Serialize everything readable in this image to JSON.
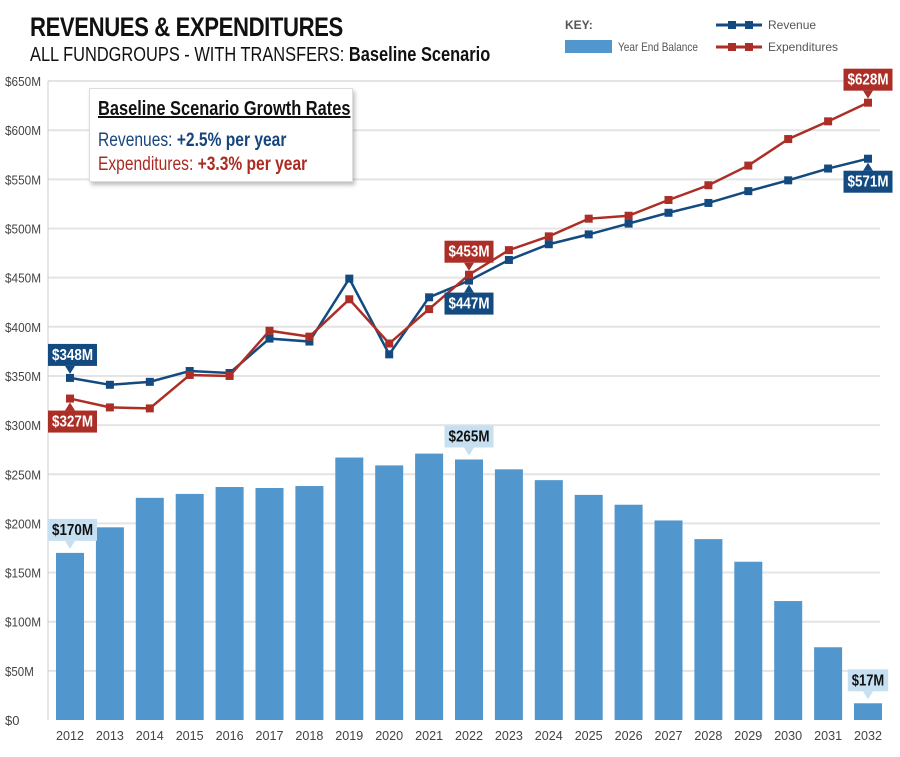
{
  "header": {
    "title": "REVENUES & EXPENDITURES",
    "subtitle_prefix": "ALL FUNDGROUPS - WITH TRANSFERS: ",
    "subtitle_bold": "Baseline Scenario"
  },
  "growth_box": {
    "heading": "Baseline Scenario Growth Rates",
    "revenues_label": "Revenues: ",
    "revenues_value": "+2.5% per year",
    "expenditures_label": "Expenditures: ",
    "expenditures_value": "+3.3% per year"
  },
  "chart_data": {
    "type": "bar+line",
    "title": "REVENUES & EXPENDITURES",
    "xlabel": "",
    "ylabel": "",
    "ylim": [
      0,
      650
    ],
    "yticks": [
      0,
      50,
      100,
      150,
      200,
      250,
      300,
      350,
      400,
      450,
      500,
      550,
      600,
      650
    ],
    "ytick_labels": [
      "$0",
      "$50M",
      "$100M",
      "$150M",
      "$200M",
      "$250M",
      "$300M",
      "$350M",
      "$400M",
      "$450M",
      "$500M",
      "$550M",
      "$600M",
      "$650M"
    ],
    "grid": true,
    "legend": {
      "title": "KEY:",
      "placement": "top-right"
    },
    "categories": [
      "2012",
      "2013",
      "2014",
      "2015",
      "2016",
      "2017",
      "2018",
      "2019",
      "2020",
      "2021",
      "2022",
      "2023",
      "2024",
      "2025",
      "2026",
      "2027",
      "2028",
      "2029",
      "2030",
      "2031",
      "2032"
    ],
    "series": [
      {
        "name": "Year End Balance",
        "kind": "bar",
        "color": "#5196cc",
        "values": [
          170,
          196,
          226,
          230,
          237,
          236,
          238,
          267,
          259,
          271,
          265,
          255,
          244,
          229,
          219,
          203,
          184,
          161,
          121,
          74,
          17
        ]
      },
      {
        "name": "Revenue",
        "kind": "line",
        "color": "#134a80",
        "values": [
          348,
          341,
          344,
          355,
          353,
          388,
          385,
          449,
          372,
          430,
          447,
          468,
          484,
          494,
          505,
          516,
          526,
          538,
          549,
          561,
          571
        ]
      },
      {
        "name": "Expenditures",
        "kind": "line",
        "color": "#ac2f27",
        "values": [
          327,
          318,
          317,
          351,
          350,
          396,
          390,
          428,
          383,
          418,
          453,
          478,
          492,
          510,
          513,
          529,
          544,
          564,
          591,
          609,
          628
        ]
      }
    ],
    "annotations": [
      {
        "series": 1,
        "index": 0,
        "text": "$348M",
        "position": "above"
      },
      {
        "series": 2,
        "index": 0,
        "text": "$327M",
        "position": "below"
      },
      {
        "series": 2,
        "index": 10,
        "text": "$453M",
        "position": "above"
      },
      {
        "series": 1,
        "index": 10,
        "text": "$447M",
        "position": "below"
      },
      {
        "series": 2,
        "index": 20,
        "text": "$628M",
        "position": "above"
      },
      {
        "series": 1,
        "index": 20,
        "text": "$571M",
        "position": "below"
      },
      {
        "series": 0,
        "index": 0,
        "text": "$170M",
        "position": "above"
      },
      {
        "series": 0,
        "index": 10,
        "text": "$265M",
        "position": "above"
      },
      {
        "series": 0,
        "index": 20,
        "text": "$17M",
        "position": "above"
      }
    ],
    "annotation_bar_color": "#c6e0f2"
  }
}
